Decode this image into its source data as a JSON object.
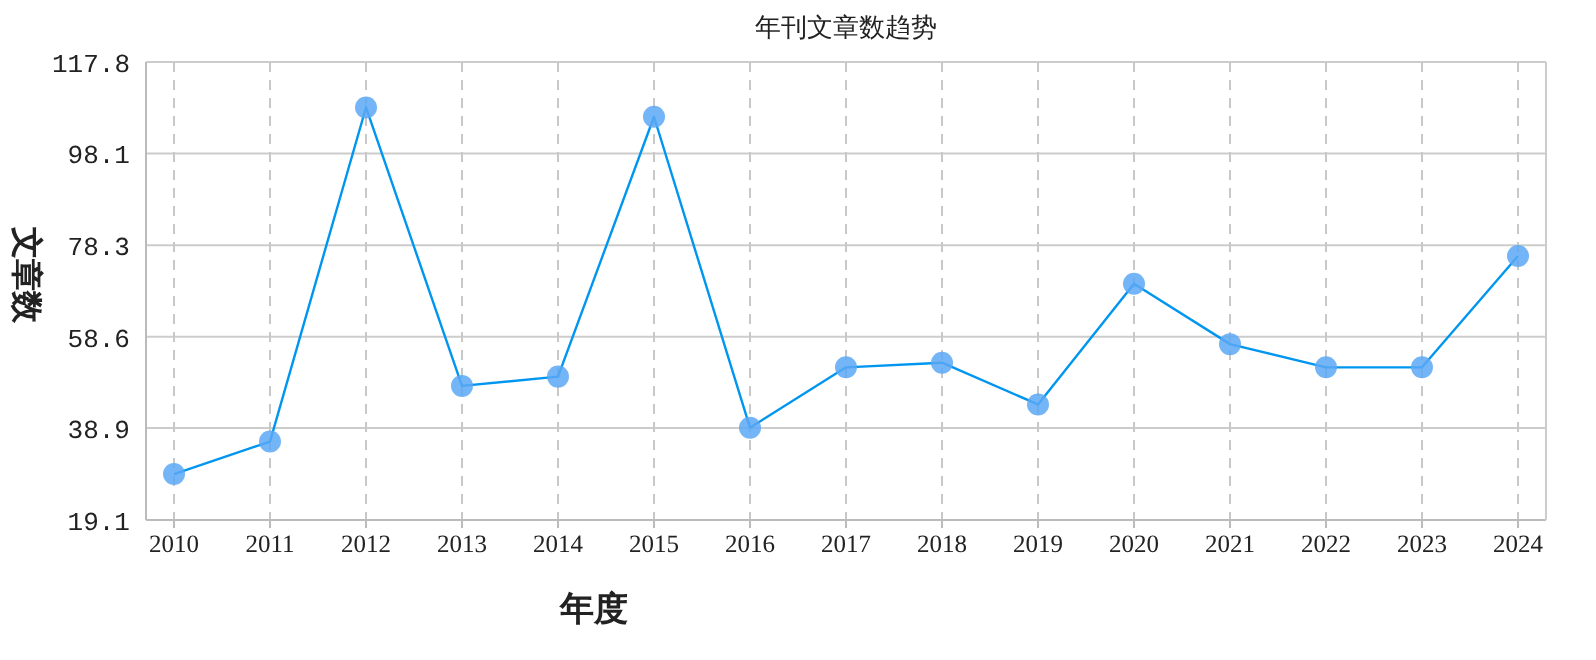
{
  "chart_data": {
    "type": "line",
    "title": "年刊文章数趋势",
    "xlabel": "年度",
    "ylabel": "文章数",
    "categories": [
      "2010",
      "2011",
      "2012",
      "2013",
      "2014",
      "2015",
      "2016",
      "2017",
      "2018",
      "2019",
      "2020",
      "2021",
      "2022",
      "2023",
      "2024"
    ],
    "series": [
      {
        "color": "#0096f0",
        "values": [
          29,
          36,
          108,
          48,
          50,
          106,
          39,
          52,
          53,
          44,
          70,
          57,
          52,
          52,
          76
        ]
      }
    ],
    "ylim": [
      19.1,
      117.8
    ],
    "yticks": [
      19.1,
      38.9,
      58.6,
      78.3,
      98.1,
      117.8
    ],
    "grid": true,
    "marker": "circle",
    "line_style": "solid"
  }
}
